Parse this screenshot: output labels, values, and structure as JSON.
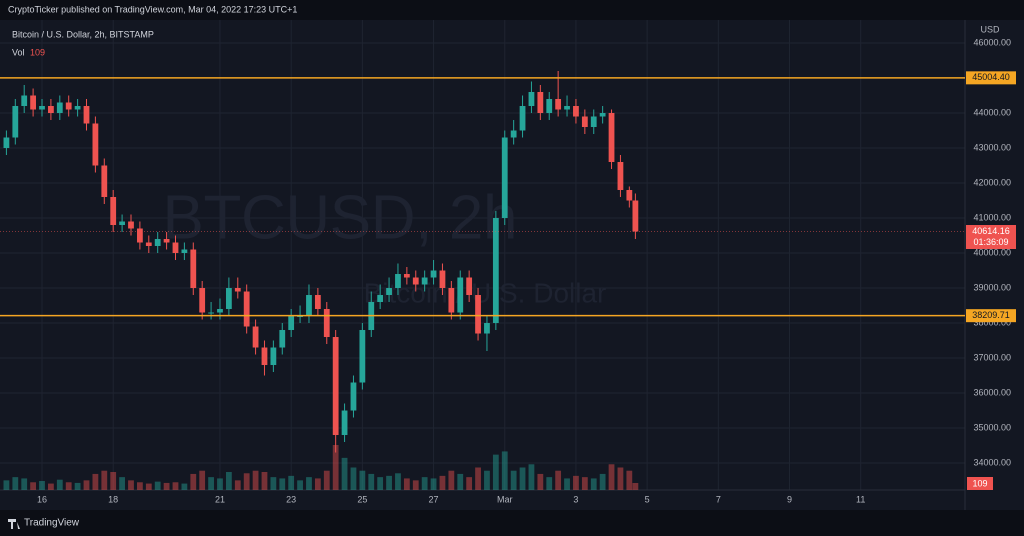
{
  "header": "CryptoTicker published on TradingView.com, Mar 04, 2022 17:23 UTC+1",
  "footer": "TradingView",
  "chart_data": {
    "type": "candlestick",
    "symbol_title": "Bitcoin / U.S. Dollar, 2h, BITSTAMP",
    "watermark": "BTCUSD, 2h",
    "watermark_subtitle": "Bitcoin / U.S. Dollar",
    "currency": "USD",
    "volume_name": "Vol",
    "up_color": "#26a69a",
    "down_color": "#ef5350",
    "level_color": "#f5a623",
    "grid": true,
    "xlim": [
      14.82,
      41.93
    ],
    "xticks": [
      16,
      18,
      21,
      23,
      25,
      27,
      {
        "value": 29,
        "label": "Mar"
      },
      {
        "value": 31,
        "label": "3"
      },
      {
        "value": 33,
        "label": "5"
      },
      {
        "value": 35,
        "label": "7"
      },
      {
        "value": 37,
        "label": "9"
      },
      {
        "value": 39,
        "label": "11"
      }
    ],
    "ylim": [
      33229,
      46657
    ],
    "yticks": [
      {
        "value": 34000,
        "label": "34000.00"
      },
      {
        "value": 35000,
        "label": "35000.00"
      },
      {
        "value": 36000,
        "label": "36000.00"
      },
      {
        "value": 37000,
        "label": "37000.00"
      },
      {
        "value": 38000,
        "label": "38000.00"
      },
      {
        "value": 39000,
        "label": "39000.00"
      },
      {
        "value": 40000,
        "label": "40000.00"
      },
      {
        "value": 41000,
        "label": "41000.00"
      },
      {
        "value": 42000,
        "label": "42000.00"
      },
      {
        "value": 43000,
        "label": "43000.00"
      },
      {
        "value": 44000,
        "label": "44000.00"
      },
      {
        "value": 45000,
        "label": "45000.00"
      },
      {
        "value": 46000,
        "label": "46000.00"
      }
    ],
    "levels": [
      {
        "value": 45004.4,
        "label": "45004.40"
      },
      {
        "value": 38209.71,
        "label": "38209.71"
      }
    ],
    "last_price": {
      "value": 40614.16,
      "label": "40614.16"
    },
    "countdown": "01:36:09",
    "x": [
      15,
      15.25,
      15.5,
      15.75,
      16,
      16.25,
      16.5,
      16.75,
      17,
      17.25,
      17.5,
      17.75,
      18,
      18.25,
      18.5,
      18.75,
      19,
      19.25,
      19.5,
      19.75,
      20,
      20.25,
      20.5,
      20.75,
      21,
      21.25,
      21.5,
      21.75,
      22,
      22.25,
      22.5,
      22.75,
      23,
      23.25,
      23.5,
      23.75,
      24,
      24.25,
      24.5,
      24.75,
      25,
      25.25,
      25.5,
      25.75,
      26,
      26.25,
      26.5,
      26.75,
      27,
      27.25,
      27.5,
      27.75,
      28,
      28.25,
      28.5,
      28.75,
      29,
      29.25,
      29.5,
      29.75,
      30,
      30.25,
      30.5,
      30.75,
      31,
      31.25,
      31.5,
      31.75,
      32,
      32.25,
      32.5,
      32.67
    ],
    "open": [
      43000,
      43300,
      44200,
      44500,
      44100,
      44200,
      44000,
      44300,
      44100,
      44200,
      43700,
      42500,
      41600,
      40800,
      40900,
      40700,
      40300,
      40200,
      40400,
      40300,
      40000,
      40100,
      39000,
      38300,
      38300,
      38400,
      39000,
      38900,
      37900,
      37300,
      36800,
      37300,
      37800,
      38200,
      38200,
      38800,
      38400,
      37600,
      34800,
      35500,
      36300,
      37800,
      38600,
      38800,
      39000,
      39400,
      39300,
      39100,
      39300,
      39500,
      39000,
      38300,
      39300,
      38800,
      37700,
      38000,
      41000,
      43300,
      43500,
      44200,
      44600,
      44000,
      44400,
      44100,
      44200,
      43900,
      43600,
      43900,
      44000,
      42600,
      41800,
      41500
    ],
    "high": [
      43500,
      44400,
      44800,
      44700,
      44400,
      44400,
      44500,
      44500,
      44400,
      44400,
      43900,
      42700,
      41800,
      41100,
      41100,
      40900,
      40500,
      40600,
      40600,
      40500,
      40300,
      40300,
      39200,
      38600,
      38700,
      39300,
      39300,
      39100,
      38100,
      37500,
      37500,
      38000,
      38400,
      38500,
      39100,
      39000,
      38600,
      37800,
      35700,
      36500,
      38000,
      38900,
      39100,
      39300,
      39700,
      39600,
      39500,
      39500,
      39800,
      39700,
      39200,
      39500,
      39500,
      39000,
      38200,
      41200,
      43500,
      43800,
      44500,
      44900,
      44800,
      44600,
      45200,
      44500,
      44400,
      44100,
      44100,
      44200,
      44100,
      42800,
      41900,
      41700
    ],
    "low": [
      42800,
      43100,
      44000,
      43900,
      43900,
      43800,
      43800,
      43900,
      43900,
      43500,
      42300,
      41400,
      40600,
      40600,
      40500,
      40100,
      40000,
      40000,
      40100,
      39800,
      39800,
      38800,
      38100,
      38100,
      38100,
      38200,
      38700,
      37700,
      37100,
      36500,
      36600,
      37100,
      37600,
      38000,
      38000,
      38200,
      37400,
      34300,
      34600,
      35300,
      36100,
      37600,
      38400,
      38600,
      38800,
      39100,
      38900,
      38900,
      39100,
      38800,
      38100,
      38100,
      38600,
      37500,
      37200,
      37800,
      40800,
      43100,
      43300,
      44000,
      43800,
      43800,
      43900,
      43900,
      43700,
      43400,
      43400,
      43700,
      42400,
      41600,
      41300,
      40400
    ],
    "close": [
      43300,
      44200,
      44500,
      44100,
      44200,
      44000,
      44300,
      44100,
      44200,
      43700,
      42500,
      41600,
      40800,
      40900,
      40700,
      40300,
      40200,
      40400,
      40300,
      40000,
      40100,
      39000,
      38300,
      38300,
      38400,
      39000,
      38900,
      37900,
      37300,
      36800,
      37300,
      37800,
      38200,
      38200,
      38800,
      38400,
      37600,
      34800,
      35500,
      36300,
      37800,
      38600,
      38800,
      39000,
      39400,
      39300,
      39100,
      39300,
      39500,
      39000,
      38300,
      39300,
      38800,
      37700,
      38000,
      41000,
      43300,
      43500,
      44200,
      44600,
      44000,
      44400,
      44100,
      44200,
      43900,
      43600,
      43900,
      44000,
      42600,
      41800,
      41500,
      40614.16
    ],
    "volume": [
      150,
      200,
      180,
      120,
      140,
      100,
      160,
      120,
      110,
      150,
      250,
      300,
      280,
      200,
      150,
      120,
      100,
      130,
      110,
      120,
      100,
      250,
      300,
      200,
      180,
      280,
      150,
      260,
      300,
      280,
      200,
      180,
      220,
      150,
      200,
      180,
      300,
      700,
      500,
      350,
      300,
      250,
      200,
      220,
      260,
      180,
      150,
      200,
      180,
      220,
      300,
      250,
      200,
      350,
      300,
      550,
      600,
      300,
      350,
      400,
      250,
      200,
      300,
      180,
      220,
      200,
      180,
      250,
      400,
      350,
      300,
      109
    ]
  }
}
